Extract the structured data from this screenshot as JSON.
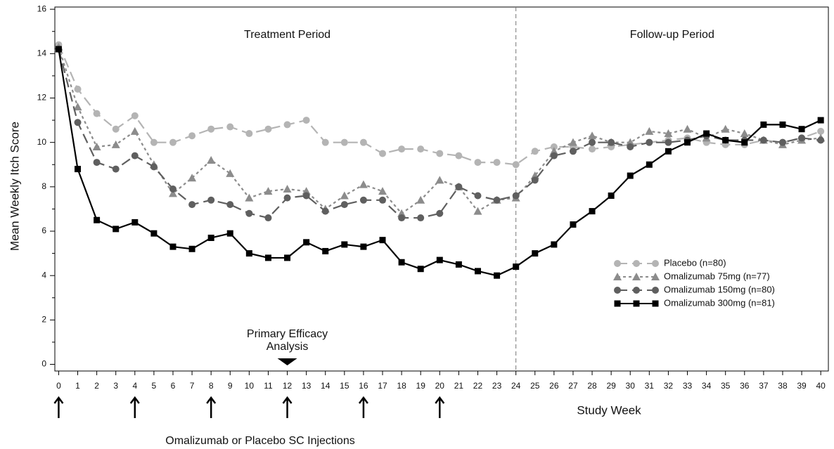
{
  "chart_data": {
    "type": "line",
    "y_label": "Mean Weekly Itch Score",
    "x_label": "Study Week",
    "period_labels": [
      "Treatment Period",
      "Follow-up Period"
    ],
    "period_divider": 24,
    "primary_efficacy_label": [
      "Primary Efficacy",
      "Analysis"
    ],
    "primary_efficacy_week": 12,
    "injection_label": "Omalizumab or Placebo SC Injections",
    "injection_weeks": [
      0,
      4,
      8,
      12,
      16,
      20
    ],
    "x": [
      0,
      1,
      2,
      3,
      4,
      5,
      6,
      7,
      8,
      9,
      10,
      11,
      12,
      13,
      14,
      15,
      16,
      17,
      18,
      19,
      20,
      21,
      22,
      23,
      24,
      25,
      26,
      27,
      28,
      29,
      30,
      31,
      32,
      33,
      34,
      35,
      36,
      37,
      38,
      39,
      40
    ],
    "xlim": [
      -0.2,
      40.4
    ],
    "xticks": [
      0,
      1,
      2,
      3,
      4,
      5,
      6,
      7,
      8,
      9,
      10,
      11,
      12,
      13,
      14,
      15,
      16,
      17,
      18,
      19,
      20,
      21,
      22,
      23,
      24,
      25,
      26,
      27,
      28,
      29,
      30,
      31,
      32,
      33,
      34,
      35,
      36,
      37,
      38,
      39,
      40
    ],
    "ylim": [
      -0.3,
      16.1
    ],
    "yticks": [
      0,
      2,
      4,
      6,
      8,
      10,
      12,
      14,
      16
    ],
    "yminorticks": [
      1,
      3,
      5,
      7,
      9,
      11,
      13,
      15
    ],
    "legend": "right",
    "series": [
      {
        "name": "Placebo (n=80)",
        "color": "#b4b4b4",
        "marker": "circle",
        "line_style": "dashed",
        "values": [
          14.4,
          12.4,
          11.3,
          10.6,
          11.2,
          10.0,
          10.0,
          10.3,
          10.6,
          10.7,
          10.4,
          10.6,
          10.8,
          11.0,
          10.0,
          10.0,
          10.0,
          9.5,
          9.7,
          9.7,
          9.5,
          9.4,
          9.1,
          9.1,
          9.0,
          9.6,
          9.8,
          9.8,
          9.7,
          9.8,
          9.9,
          10.0,
          10.1,
          10.2,
          10.0,
          9.9,
          9.9,
          10.1,
          10.0,
          10.2,
          10.5
        ]
      },
      {
        "name": "Omalizumab 75mg (n=77)",
        "color": "#8c8c8c",
        "marker": "triangle",
        "line_style": "dotted",
        "values": [
          14.3,
          11.6,
          9.8,
          9.9,
          10.5,
          9.0,
          7.7,
          8.4,
          9.2,
          8.6,
          7.5,
          7.8,
          7.9,
          7.8,
          7.0,
          7.6,
          8.1,
          7.8,
          6.8,
          7.4,
          8.3,
          8.0,
          6.9,
          7.4,
          7.5,
          8.5,
          9.6,
          10.0,
          10.3,
          10.0,
          10.0,
          10.5,
          10.4,
          10.6,
          10.2,
          10.6,
          10.4,
          10.1,
          9.9,
          10.1,
          10.2
        ]
      },
      {
        "name": "Omalizumab 150mg (n=80)",
        "color": "#5f5f5f",
        "marker": "circle",
        "line_style": "dashed",
        "values": [
          14.2,
          10.9,
          9.1,
          8.8,
          9.4,
          8.9,
          7.9,
          7.2,
          7.4,
          7.2,
          6.8,
          6.6,
          7.5,
          7.6,
          6.9,
          7.2,
          7.4,
          7.4,
          6.6,
          6.6,
          6.8,
          8.0,
          7.6,
          7.4,
          7.6,
          8.3,
          9.4,
          9.6,
          10.0,
          10.0,
          9.8,
          10.0,
          10.0,
          10.1,
          10.3,
          10.1,
          10.1,
          10.1,
          10.0,
          10.2,
          10.1
        ]
      },
      {
        "name": "Omalizumab 300mg (n=81)",
        "color": "#000000",
        "marker": "square",
        "line_style": "solid",
        "values": [
          14.2,
          8.8,
          6.5,
          6.1,
          6.4,
          5.9,
          5.3,
          5.2,
          5.7,
          5.9,
          5.0,
          4.8,
          4.8,
          5.5,
          5.1,
          5.4,
          5.3,
          5.6,
          4.6,
          4.3,
          4.7,
          4.5,
          4.2,
          4.0,
          4.4,
          5.0,
          5.4,
          6.3,
          6.9,
          7.6,
          8.5,
          9.0,
          9.6,
          10.0,
          10.4,
          10.1,
          10.0,
          10.8,
          10.8,
          10.6,
          11.0
        ]
      }
    ]
  }
}
